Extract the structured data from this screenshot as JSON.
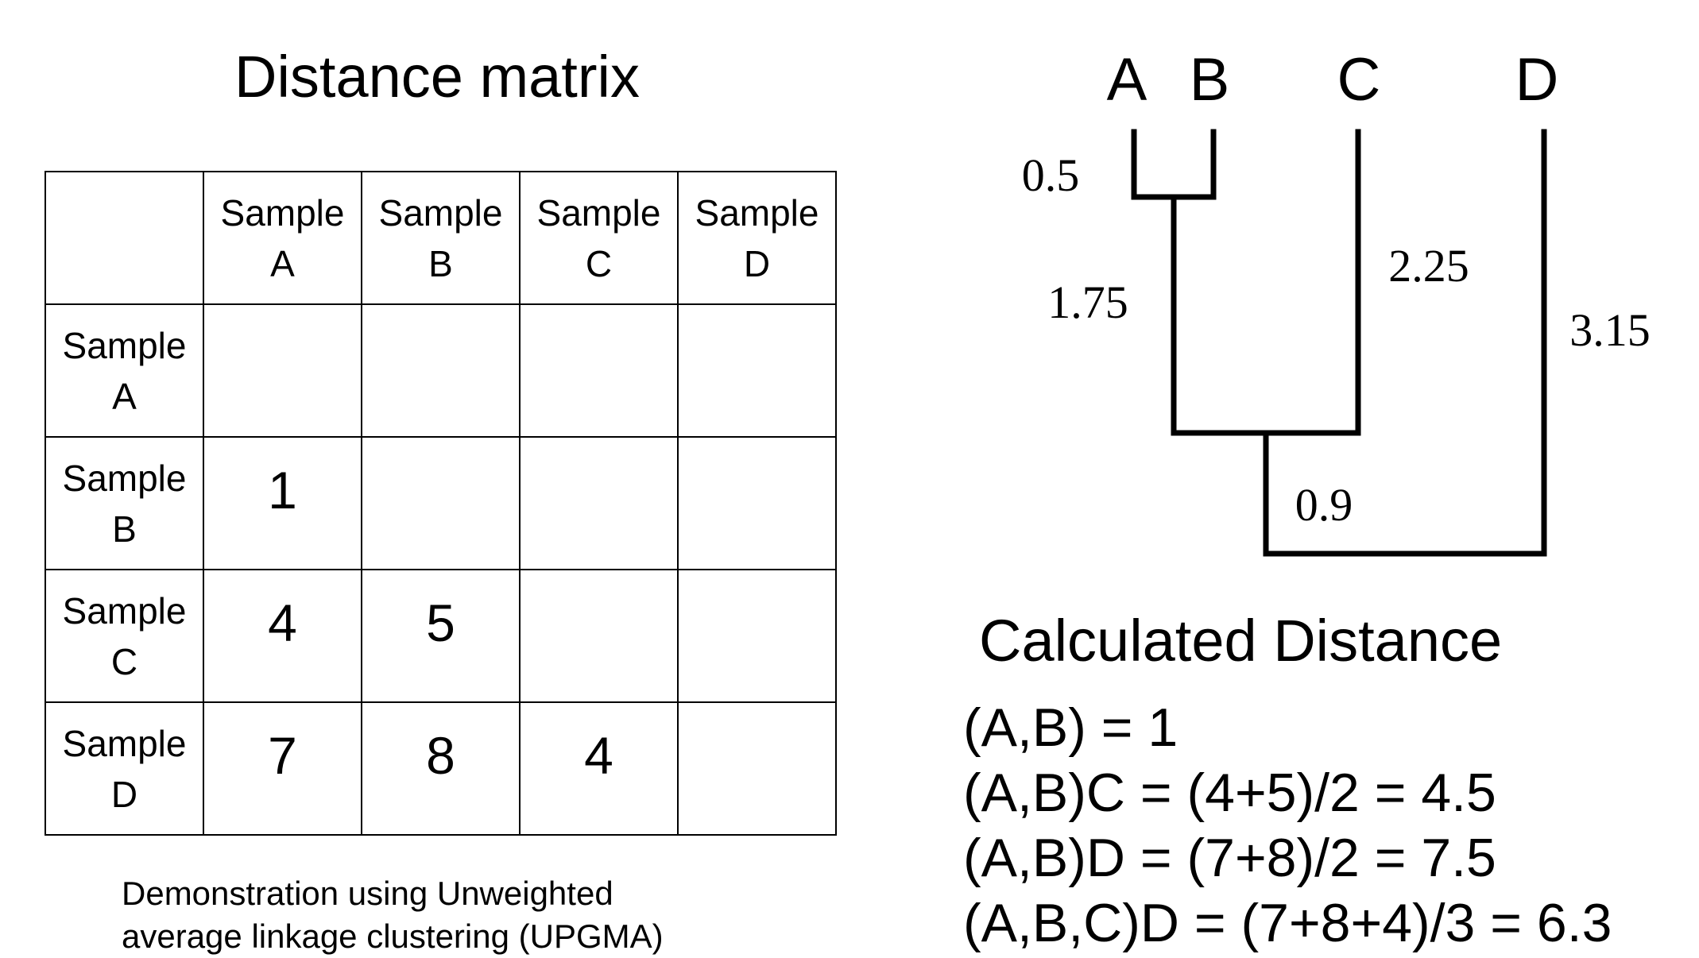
{
  "matrix": {
    "title": "Distance matrix",
    "column_headers": [
      {
        "line1": "Sample",
        "line2": "A"
      },
      {
        "line1": "Sample",
        "line2": "B"
      },
      {
        "line1": "Sample",
        "line2": "C"
      },
      {
        "line1": "Sample",
        "line2": "D"
      }
    ],
    "rows": [
      {
        "line1": "Sample",
        "line2": "A",
        "cells": [
          "",
          "",
          "",
          ""
        ]
      },
      {
        "line1": "Sample",
        "line2": "B",
        "cells": [
          "1",
          "",
          "",
          ""
        ]
      },
      {
        "line1": "Sample",
        "line2": "C",
        "cells": [
          "4",
          "5",
          "",
          ""
        ]
      },
      {
        "line1": "Sample",
        "line2": "D",
        "cells": [
          "7",
          "8",
          "4",
          ""
        ]
      }
    ]
  },
  "caption": {
    "line1": "Demonstration using Unweighted",
    "line2": "average linkage clustering (UPGMA)"
  },
  "tree": {
    "leaves": [
      "A",
      "B",
      "C",
      "D"
    ],
    "branch_lengths": {
      "ab": "0.5",
      "ab_to_abc": "1.75",
      "c": "2.25",
      "abc_to_root": "0.9",
      "d": "3.15"
    }
  },
  "calculated": {
    "title": "Calculated Distance",
    "lines": [
      "(A,B) = 1",
      "(A,B)C = (4+5)/2 = 4.5",
      "(A,B)D = (7+8)/2 = 7.5",
      "(A,B,C)D = (7+8+4)/3 = 6.3"
    ]
  }
}
